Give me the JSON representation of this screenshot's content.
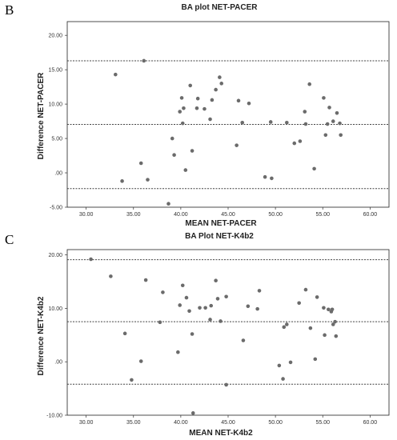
{
  "panels": [
    {
      "panel_label": "B",
      "chart_data": {
        "type": "scatter",
        "title": "BA plot NET-PACER",
        "xlabel": "MEAN NET-PACER",
        "ylabel": "Difference NET-PACER",
        "xlim": [
          28,
          62
        ],
        "ylim": [
          -5,
          22
        ],
        "x_ticks": [
          30,
          35,
          40,
          45,
          50,
          55,
          60
        ],
        "x_tick_labels": [
          "30.00",
          "35.00",
          "40.00",
          "45.00",
          "50.00",
          "55.00",
          "60.00"
        ],
        "y_ticks": [
          -5,
          0,
          5,
          10,
          15,
          20
        ],
        "y_tick_labels": [
          "-5.00",
          ".00",
          "5.00",
          "10.00",
          "15.00",
          "20.00"
        ],
        "reference_lines": [
          16.3,
          7.05,
          -2.3
        ],
        "grid": false,
        "points": [
          {
            "x": 33.1,
            "y": 14.3
          },
          {
            "x": 33.8,
            "y": -1.2
          },
          {
            "x": 35.8,
            "y": 1.4
          },
          {
            "x": 36.1,
            "y": 16.3
          },
          {
            "x": 36.5,
            "y": -1.0
          },
          {
            "x": 38.7,
            "y": -4.5
          },
          {
            "x": 39.1,
            "y": 5.0
          },
          {
            "x": 39.3,
            "y": 2.6
          },
          {
            "x": 39.9,
            "y": 8.9
          },
          {
            "x": 40.1,
            "y": 10.9
          },
          {
            "x": 40.2,
            "y": 7.2
          },
          {
            "x": 40.3,
            "y": 9.4
          },
          {
            "x": 40.5,
            "y": 0.4
          },
          {
            "x": 41.0,
            "y": 12.7
          },
          {
            "x": 41.2,
            "y": 3.2
          },
          {
            "x": 41.7,
            "y": 9.4
          },
          {
            "x": 41.8,
            "y": 10.8
          },
          {
            "x": 42.5,
            "y": 9.3
          },
          {
            "x": 43.1,
            "y": 7.8
          },
          {
            "x": 43.3,
            "y": 10.6
          },
          {
            "x": 43.7,
            "y": 12.1
          },
          {
            "x": 44.1,
            "y": 13.9
          },
          {
            "x": 44.3,
            "y": 13.0
          },
          {
            "x": 45.9,
            "y": 4.0
          },
          {
            "x": 46.1,
            "y": 10.5
          },
          {
            "x": 46.5,
            "y": 7.3
          },
          {
            "x": 47.2,
            "y": 10.1
          },
          {
            "x": 48.9,
            "y": -0.6
          },
          {
            "x": 49.5,
            "y": 7.4
          },
          {
            "x": 49.6,
            "y": -0.8
          },
          {
            "x": 51.2,
            "y": 7.3
          },
          {
            "x": 52.0,
            "y": 4.3
          },
          {
            "x": 52.6,
            "y": 4.6
          },
          {
            "x": 53.1,
            "y": 8.9
          },
          {
            "x": 53.2,
            "y": 7.1
          },
          {
            "x": 53.6,
            "y": 12.9
          },
          {
            "x": 54.1,
            "y": 0.6
          },
          {
            "x": 55.1,
            "y": 10.9
          },
          {
            "x": 55.3,
            "y": 5.5
          },
          {
            "x": 55.5,
            "y": 7.1
          },
          {
            "x": 55.7,
            "y": 9.5
          },
          {
            "x": 56.1,
            "y": 7.5
          },
          {
            "x": 56.5,
            "y": 8.7
          },
          {
            "x": 56.8,
            "y": 7.2
          },
          {
            "x": 56.9,
            "y": 5.5
          }
        ]
      }
    },
    {
      "panel_label": "C",
      "chart_data": {
        "type": "scatter",
        "title": "BA Plot NET-K4b2",
        "xlabel": "MEAN NET-K4b2",
        "ylabel": "Difference NET-K4b2",
        "xlim": [
          28,
          62
        ],
        "ylim": [
          -10,
          21
        ],
        "x_ticks": [
          30,
          35,
          40,
          45,
          50,
          55,
          60
        ],
        "x_tick_labels": [
          "30.00",
          "35.00",
          "40.00",
          "45.00",
          "50.00",
          "55.00",
          "60.00"
        ],
        "y_ticks": [
          -10,
          0,
          10,
          20
        ],
        "y_tick_labels": [
          "-10.00",
          ".00",
          "10.00",
          "20.00"
        ],
        "reference_lines": [
          19.1,
          7.5,
          -4.2
        ],
        "grid": false,
        "points": [
          {
            "x": 30.5,
            "y": 19.2
          },
          {
            "x": 32.6,
            "y": 16.0
          },
          {
            "x": 34.1,
            "y": 5.3
          },
          {
            "x": 34.8,
            "y": -3.4
          },
          {
            "x": 35.8,
            "y": 0.1
          },
          {
            "x": 36.3,
            "y": 15.3
          },
          {
            "x": 37.8,
            "y": 7.4
          },
          {
            "x": 38.1,
            "y": 13.0
          },
          {
            "x": 39.7,
            "y": 1.8
          },
          {
            "x": 39.9,
            "y": 10.6
          },
          {
            "x": 40.2,
            "y": 14.3
          },
          {
            "x": 40.6,
            "y": 12.0
          },
          {
            "x": 40.9,
            "y": 9.5
          },
          {
            "x": 41.2,
            "y": 5.2
          },
          {
            "x": 41.3,
            "y": -9.6
          },
          {
            "x": 42.0,
            "y": 10.1
          },
          {
            "x": 42.6,
            "y": 10.1
          },
          {
            "x": 43.1,
            "y": 7.9
          },
          {
            "x": 43.2,
            "y": 10.5
          },
          {
            "x": 43.7,
            "y": 15.2
          },
          {
            "x": 43.9,
            "y": 11.8
          },
          {
            "x": 44.2,
            "y": 7.6
          },
          {
            "x": 44.8,
            "y": 12.2
          },
          {
            "x": 44.8,
            "y": -4.3
          },
          {
            "x": 46.6,
            "y": 4.0
          },
          {
            "x": 47.1,
            "y": 10.4
          },
          {
            "x": 48.1,
            "y": 9.9
          },
          {
            "x": 48.3,
            "y": 13.3
          },
          {
            "x": 50.4,
            "y": -0.7
          },
          {
            "x": 50.8,
            "y": -3.2
          },
          {
            "x": 50.9,
            "y": 6.5
          },
          {
            "x": 51.2,
            "y": 7.0
          },
          {
            "x": 51.6,
            "y": -0.1
          },
          {
            "x": 52.5,
            "y": 11.0
          },
          {
            "x": 53.2,
            "y": 13.5
          },
          {
            "x": 53.7,
            "y": 6.3
          },
          {
            "x": 54.2,
            "y": 0.5
          },
          {
            "x": 54.4,
            "y": 12.1
          },
          {
            "x": 55.1,
            "y": 10.1
          },
          {
            "x": 55.2,
            "y": 5.0
          },
          {
            "x": 55.6,
            "y": 9.8
          },
          {
            "x": 55.9,
            "y": 9.4
          },
          {
            "x": 56.0,
            "y": 9.8
          },
          {
            "x": 56.1,
            "y": 7.0
          },
          {
            "x": 56.3,
            "y": 7.5
          },
          {
            "x": 56.4,
            "y": 4.8
          }
        ]
      }
    }
  ],
  "colors": {
    "point": "#6b6b6b",
    "axis": "#333333",
    "frame": "#222222",
    "refline": "#444444"
  }
}
